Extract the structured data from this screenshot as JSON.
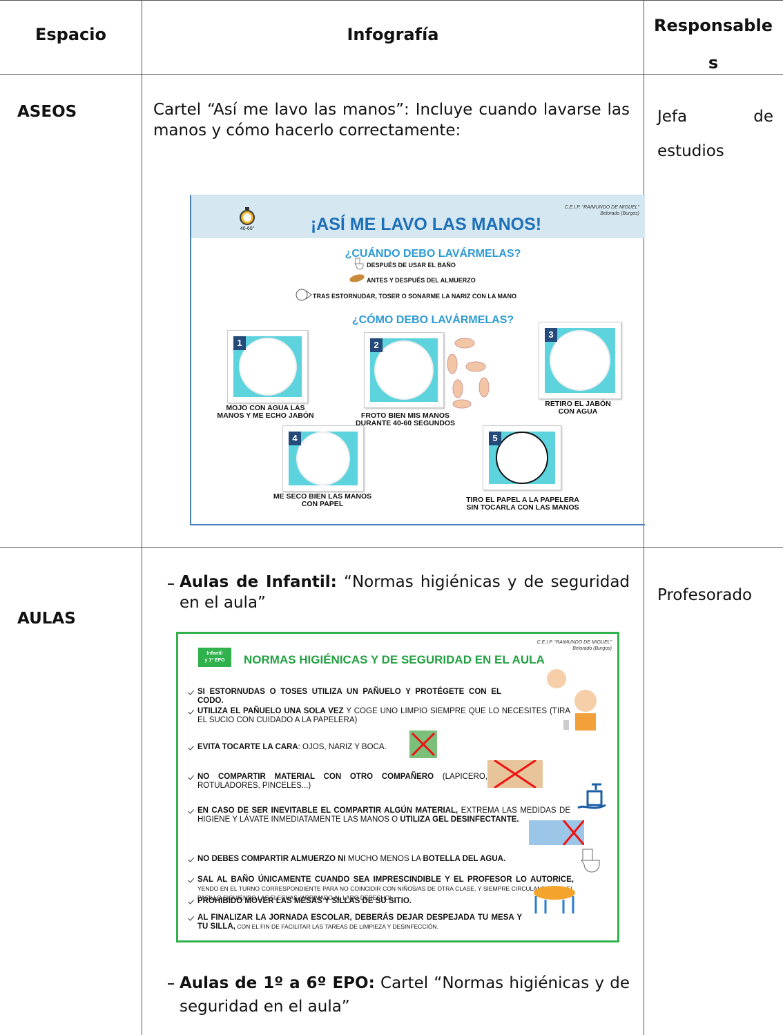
{
  "table": {
    "header": [
      "Espacio",
      "Infografía",
      "Responsables"
    ],
    "rows": [
      {
        "space": "ASEOS",
        "description": "Cartel “Así me lavo las manos”: Incluye cuando lavarse las manos y cómo hacerlo correctamente:",
        "poster": {
          "title": "¡ASÍ ME LAVO LAS MANOS!",
          "school": "C.E.I.P. “RAIMUNDO DE MIGUEL”",
          "town": "Belorado (Burgos)",
          "timer": "40-60''",
          "when_heading": "¿CUÁNDO DEBO LAVÁRMELAS?",
          "when": [
            "DESPUÉS DE USAR EL BAÑO",
            "ANTES Y DESPUÉS DEL ALMUERZO",
            "TRAS ESTORNUDAR, TOSER O SONARME LA NARIZ CON LA MANO"
          ],
          "how_heading": "¿CÓMO DEBO LAVÁRMELAS?",
          "steps": [
            {
              "number": "1",
              "text": "MOJO CON AGUA LAS\nMANOS Y ME ECHO JABÓN"
            },
            {
              "number": "2",
              "text": "FROTO BIEN MIS MANOS\nDURANTE 40-60 SEGUNDOS"
            },
            {
              "number": "3",
              "text": "RETIRO EL JABÓN\nCON AGUA"
            },
            {
              "number": "4",
              "text": "ME SECO BIEN LAS MANOS\nCON PAPEL"
            },
            {
              "number": "5",
              "text": "TIRO EL PAPEL A LA PAPELERA\nSIN TOCARLA CON LAS MANOS"
            }
          ]
        },
        "responsible": "Jefa de estudios"
      },
      {
        "space": "AULAS",
        "items": [
          {
            "label": "Aulas de Infantil:",
            "text": " “Normas higiénicas y de seguridad en el aula”"
          },
          {
            "label": "Aulas de 1º a 6º EPO:",
            "text": " Cartel “Normas higiénicas y de seguridad en el aula”"
          }
        ],
        "poster": {
          "badge": "Infantil\ny 1º EPO",
          "school": "C.E.I.P. “RAIMUNDO DE MIGUEL”",
          "town": "Belorado (Burgos)",
          "title": "NORMAS HIGIÉNICAS Y DE SEGURIDAD EN EL AULA",
          "rules": [
            [
              {
                "b": "SI ESTORNUDAS O TOSES UTILIZA UN PAÑUELO Y PROTÉGETE CON EL CODO."
              }
            ],
            [
              {
                "b": "UTILIZA EL PAÑUELO UNA SOLA VEZ"
              },
              {
                "t": " Y COGE UNO LIMPIO SIEMPRE QUE LO NECESITES (TIRA EL SUCIO CON CUIDADO A LA PAPELERA)"
              }
            ],
            [
              {
                "b": "EVITA TOCARTE LA CARA"
              },
              {
                "t": ": OJOS, NARIZ Y BOCA."
              }
            ],
            [
              {
                "b": "NO COMPARTIR MATERIAL CON OTRO COMPAÑERO"
              },
              {
                "t": " (LAPICERO, ROTULADORES, PINCELES...)"
              }
            ],
            [
              {
                "b": "EN CASO DE SER INEVITABLE EL COMPARTIR ALGÚN MATERIAL,"
              },
              {
                "t": " EXTREMA LAS MEDIDAS DE HIGIENE Y LÁVATE INMEDIATAMENTE LAS MANOS O "
              },
              {
                "b": "UTILIZA GEL DESINFECTANTE."
              }
            ],
            [
              {
                "b": "NO DEBES COMPARTIR ALMUERZO NI"
              },
              {
                "t": " MUCHO MENOS LA "
              },
              {
                "b": "BOTELLA DEL AGUA."
              }
            ],
            [
              {
                "b": "SAL AL BAÑO ÚNICAMENTE CUANDO SEA IMPRESCINDIBLE Y EL PROFESOR LO AUTORICE,"
              },
              {
                "t": " YENDO EN EL TURNO CORRESPONDIENTE PARA NO COINCIDIR CON NIÑOS/AS DE OTRA CLASE, Y SIEMPRE CIRCULANDO POR EL PASILLO SIGUIENDO LAS FLECHAS (ARRIMADO AL LADO DERECHO)."
              }
            ],
            [
              {
                "b": "PROHIBIDO MOVER LAS MESAS Y SILLAS DE SU SITIO."
              }
            ],
            [
              {
                "b": "AL FINALIZAR LA JORNADA ESCOLAR, DEBERÁS DEJAR DESPEJADA TU MESA Y TU SILLA,"
              },
              {
                "t": " CON EL FIN DE FACILITAR LAS TAREAS DE LIMPIEZA Y DESINFECCIÓN."
              }
            ]
          ]
        },
        "responsible": "Profesorado"
      }
    ]
  }
}
